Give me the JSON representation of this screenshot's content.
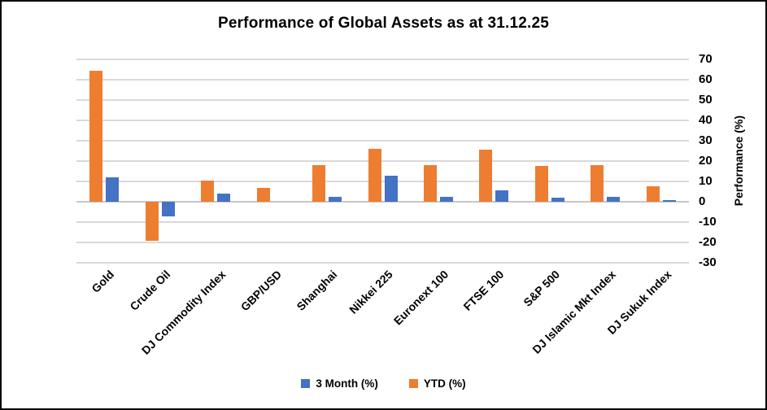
{
  "chart_data": {
    "type": "bar",
    "title": "Performance of Global Assets as at 31.12.25",
    "categories": [
      "Gold",
      "Crude Oil",
      "DJ Commodity Index",
      "GBP/USD",
      "Shanghai",
      "Nikkei 225",
      "Euronext 100",
      "FTSE 100",
      "S&P 500",
      "DJ Islamic Mkt Index",
      "DJ Sukuk Index"
    ],
    "series": [
      {
        "name": "3 Month (%)",
        "color": "#4472C4",
        "pair_position": "right",
        "values": [
          12,
          -7,
          4,
          0,
          2.5,
          13,
          2.5,
          5.5,
          2,
          2.5,
          0.7
        ]
      },
      {
        "name": "YTD (%)",
        "color": "#ED7D31",
        "pair_position": "left",
        "values": [
          64.5,
          -19,
          10.5,
          7,
          18,
          26,
          18,
          25.5,
          17.5,
          18,
          7.5
        ]
      }
    ],
    "xlabel": "",
    "ylabel": "Performance (%)",
    "ylim": [
      -30,
      70
    ],
    "yticks": [
      70,
      60,
      50,
      40,
      30,
      20,
      10,
      0,
      -10,
      -20,
      -30
    ],
    "grid": true,
    "legend_position": "bottom",
    "gridline_color": "#d9d9d9"
  }
}
